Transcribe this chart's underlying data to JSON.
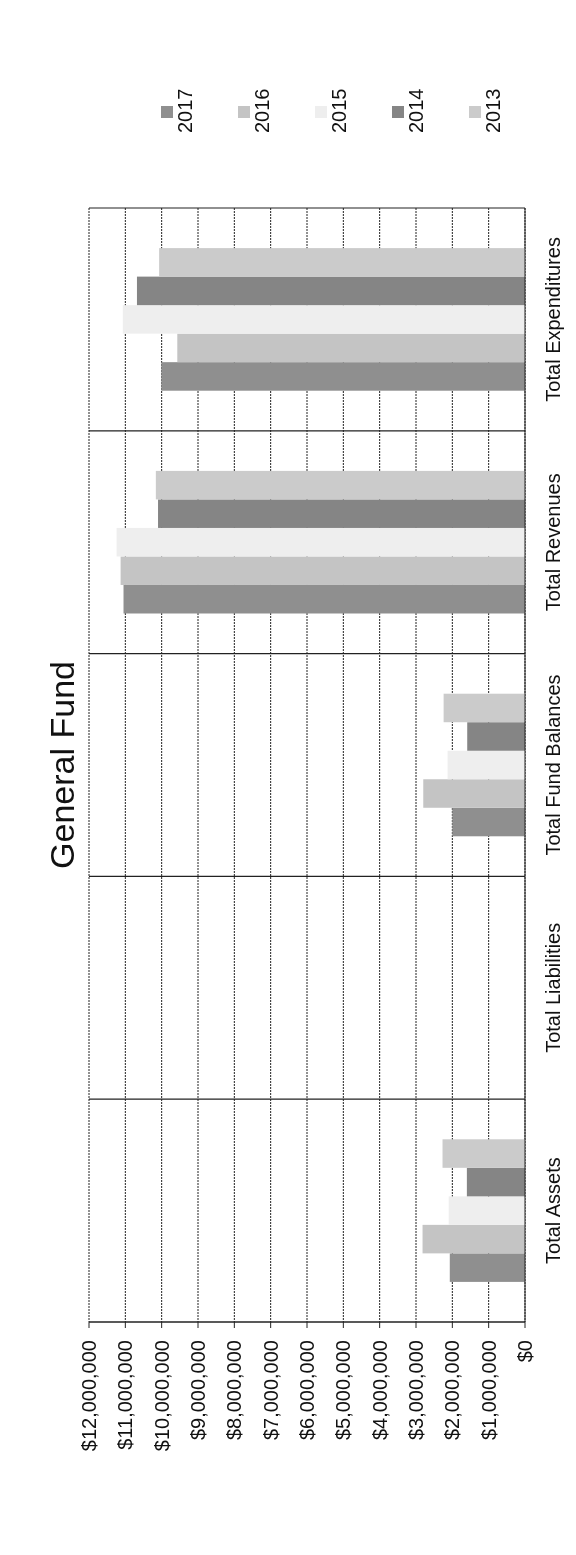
{
  "chart_data": {
    "type": "bar",
    "title": "General Fund",
    "orientation": "horizontal",
    "categories": [
      "Total Expenditures",
      "Total Revenues",
      "Total Fund Balances",
      "Total Liabilities",
      "Total Assets"
    ],
    "series": [
      {
        "name": "2017",
        "color": "#8f8f8f",
        "values": [
          10010000,
          11050000,
          2000000,
          0,
          2070000
        ]
      },
      {
        "name": "2016",
        "color": "#c4c4c4",
        "values": [
          9570000,
          11130000,
          2800000,
          0,
          2820000
        ]
      },
      {
        "name": "2015",
        "color": "#eeeeee",
        "values": [
          11070000,
          11240000,
          2130000,
          0,
          2100000
        ]
      },
      {
        "name": "2014",
        "color": "#858585",
        "values": [
          10680000,
          10100000,
          1590000,
          0,
          1600000
        ]
      },
      {
        "name": "2013",
        "color": "#cbcbcb",
        "values": [
          10070000,
          10160000,
          2240000,
          0,
          2270000
        ]
      }
    ],
    "xlim": [
      12000000,
      0
    ],
    "xticks": [
      {
        "value": 12000000,
        "label": "$12,000,000"
      },
      {
        "value": 11000000,
        "label": "$11,000,000"
      },
      {
        "value": 10000000,
        "label": "$10,000,000"
      },
      {
        "value": 9000000,
        "label": "$9,000,000"
      },
      {
        "value": 8000000,
        "label": "$8,000,000"
      },
      {
        "value": 7000000,
        "label": "$7,000,000"
      },
      {
        "value": 6000000,
        "label": "$6,000,000"
      },
      {
        "value": 5000000,
        "label": "$5,000,000"
      },
      {
        "value": 4000000,
        "label": "$4,000,000"
      },
      {
        "value": 3000000,
        "label": "$3,000,000"
      },
      {
        "value": 2000000,
        "label": "$2,000,000"
      },
      {
        "value": 1000000,
        "label": "$1,000,000"
      },
      {
        "value": 0,
        "label": "$0"
      }
    ],
    "grid": true,
    "legend": "top"
  }
}
